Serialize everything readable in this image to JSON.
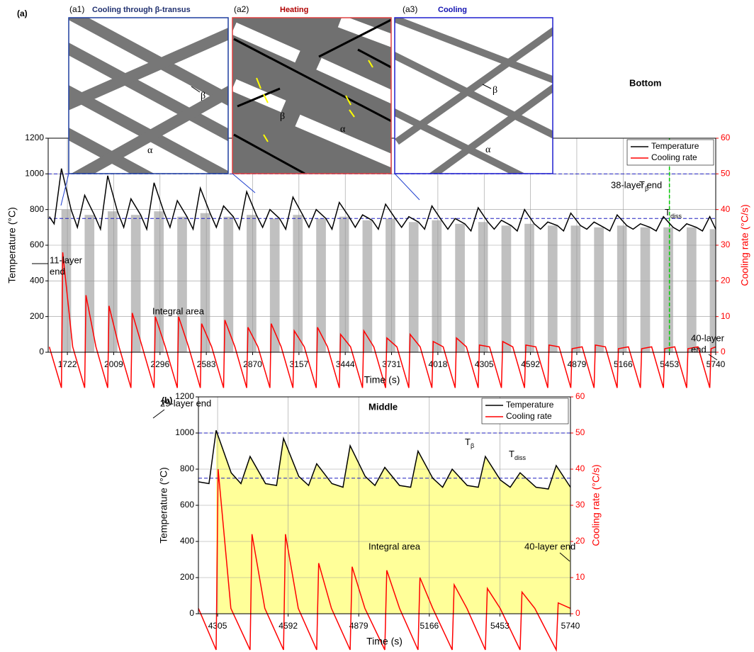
{
  "chart_data": [
    {
      "type": "line",
      "panel": "(a)",
      "position_label": "Bottom",
      "xlabel": "Time (s)",
      "ylabel": "Temperature (°C)",
      "y2label": "Cooling rate (°C/s)",
      "xlim": [
        1603,
        5740
      ],
      "ylim": [
        0,
        1200
      ],
      "y2lim": [
        0,
        60
      ],
      "xticks": [
        1722,
        2009,
        2296,
        2583,
        2870,
        3157,
        3444,
        3731,
        4018,
        4305,
        4592,
        4879,
        5166,
        5453,
        5740
      ],
      "yticks": [
        0,
        200,
        400,
        600,
        800,
        1000,
        1200
      ],
      "y2ticks": [
        0,
        10,
        20,
        30,
        40,
        50,
        60
      ],
      "grid": true,
      "legend": "upper right",
      "shading": "#c0c0c0",
      "series": [
        {
          "name": "Temperature",
          "color": "#000000",
          "axis": "y",
          "x": [
            1610,
            1640,
            1685,
            1745,
            1784,
            1829,
            1889,
            1927,
            1972,
            2032,
            2071,
            2116,
            2176,
            2214,
            2259,
            2319,
            2358,
            2403,
            2463,
            2501,
            2546,
            2606,
            2645,
            2690,
            2750,
            2788,
            2833,
            2893,
            2932,
            2977,
            3037,
            3075,
            3120,
            3180,
            3219,
            3264,
            3324,
            3362,
            3407,
            3467,
            3506,
            3551,
            3611,
            3649,
            3694,
            3754,
            3793,
            3838,
            3898,
            3936,
            3981,
            4041,
            4080,
            4125,
            4185,
            4223,
            4268,
            4328,
            4367,
            4412,
            4472,
            4510,
            4555,
            4615,
            4654,
            4699,
            4759,
            4797,
            4842,
            4902,
            4941,
            4986,
            5046,
            5084,
            5129,
            5189,
            5228,
            5273,
            5333,
            5371,
            5416,
            5476,
            5515,
            5560,
            5620,
            5658,
            5703,
            5740
          ],
          "values": [
            760,
            720,
            1030,
            800,
            700,
            880,
            770,
            690,
            990,
            790,
            700,
            860,
            770,
            690,
            950,
            790,
            700,
            850,
            760,
            690,
            920,
            780,
            700,
            820,
            760,
            690,
            900,
            770,
            700,
            800,
            750,
            690,
            870,
            770,
            700,
            800,
            750,
            690,
            840,
            760,
            700,
            770,
            740,
            690,
            830,
            750,
            700,
            760,
            730,
            690,
            820,
            740,
            690,
            750,
            720,
            680,
            810,
            730,
            690,
            740,
            710,
            680,
            800,
            720,
            690,
            730,
            710,
            680,
            780,
            710,
            690,
            730,
            700,
            680,
            770,
            710,
            690,
            720,
            700,
            680,
            760,
            700,
            680,
            720,
            700,
            680,
            760,
            690
          ]
        },
        {
          "name": "Cooling rate",
          "color": "#ff0000",
          "axis": "y2",
          "x": [
            1610,
            1685,
            1693,
            1755,
            1829,
            1837,
            1899,
            1972,
            1980,
            2042,
            2116,
            2124,
            2186,
            2259,
            2267,
            2329,
            2403,
            2411,
            2473,
            2546,
            2554,
            2616,
            2690,
            2698,
            2760,
            2833,
            2841,
            2903,
            2977,
            2985,
            3047,
            3120,
            3128,
            3190,
            3264,
            3272,
            3334,
            3407,
            3415,
            3477,
            3551,
            3559,
            3621,
            3694,
            3702,
            3764,
            3838,
            3846,
            3908,
            3981,
            3989,
            4051,
            4125,
            4133,
            4195,
            4268,
            4276,
            4338,
            4412,
            4420,
            4482,
            4555,
            4563,
            4625,
            4699,
            4707,
            4769,
            4842,
            4850,
            4912,
            4986,
            4994,
            5056,
            5129,
            5137,
            5199,
            5273,
            5281,
            5343,
            5416,
            5424,
            5486,
            5560,
            5568,
            5630,
            5703,
            5711,
            5740
          ],
          "values": [
            1.5,
            -10,
            28,
            1.5,
            -10,
            16,
            1.5,
            -10,
            13,
            1.5,
            -10,
            11,
            1.5,
            -10,
            10,
            1.5,
            -10,
            10,
            1.5,
            -10,
            8,
            1.5,
            -10,
            9,
            1.5,
            -10,
            7,
            1.5,
            -10,
            8,
            1.5,
            -10,
            6,
            1.5,
            -10,
            7,
            1.5,
            -10,
            5,
            1.5,
            -10,
            6,
            1.5,
            -10,
            4,
            1.5,
            -10,
            5,
            1.5,
            -10,
            3,
            1.5,
            -10,
            4,
            1.5,
            -10,
            2,
            1.5,
            -10,
            3,
            1.5,
            -10,
            2,
            1.5,
            -10,
            2,
            1.5,
            -10,
            1,
            1.5,
            -10,
            2,
            1.5,
            -10,
            1,
            1.5,
            -10,
            1,
            1.5,
            -10,
            1,
            1.5,
            -10,
            1,
            1.5,
            -10,
            1,
            1.5
          ]
        }
      ],
      "ref_lines": [
        {
          "value": 1000,
          "color": "#1f1fbf",
          "label": {
            "main": "T",
            "sub": "β"
          }
        },
        {
          "value": 750,
          "color": "#1f1fbf",
          "label": {
            "main": "T",
            "sub": "diss"
          }
        }
      ],
      "vlines": [
        {
          "value": 5453,
          "color": "#00cc00"
        }
      ],
      "annotations": [
        {
          "lines": [
            "11-layer",
            "end"
          ]
        },
        {
          "lines": [
            "Integral area"
          ]
        },
        {
          "lines": [
            "38-layer end"
          ]
        },
        {
          "lines": [
            "40-layer",
            "end"
          ]
        }
      ]
    },
    {
      "type": "line",
      "panel": "(b)",
      "position_label": "Middle",
      "xlabel": "Time (s)",
      "ylabel": "Temperature (°C)",
      "y2label": "Cooling rate (°C/s)",
      "xlim": [
        4227,
        5740
      ],
      "ylim": [
        0,
        1200
      ],
      "y2lim": [
        0,
        60
      ],
      "xticks": [
        4305,
        4592,
        4879,
        5166,
        5453,
        5740
      ],
      "yticks": [
        0,
        200,
        400,
        600,
        800,
        1000,
        1200
      ],
      "y2ticks": [
        0,
        10,
        20,
        30,
        40,
        50,
        60
      ],
      "grid": true,
      "legend": "upper right",
      "integral_start": 4299,
      "integral_color": "#ffff99",
      "series": [
        {
          "name": "Temperature",
          "color": "#000000",
          "axis": "y",
          "x": [
            4227,
            4270,
            4299,
            4360,
            4400,
            4437,
            4500,
            4545,
            4573,
            4635,
            4675,
            4708,
            4770,
            4815,
            4844,
            4905,
            4945,
            4985,
            5045,
            5090,
            5120,
            5180,
            5220,
            5259,
            5320,
            5365,
            5394,
            5455,
            5495,
            5535,
            5600,
            5650,
            5682,
            5740
          ],
          "values": [
            730,
            720,
            1015,
            780,
            720,
            870,
            720,
            710,
            970,
            760,
            710,
            830,
            720,
            700,
            930,
            760,
            710,
            810,
            710,
            700,
            900,
            750,
            700,
            800,
            710,
            700,
            870,
            740,
            700,
            780,
            700,
            690,
            820,
            700
          ]
        },
        {
          "name": "Cooling rate",
          "color": "#ff0000",
          "axis": "y2",
          "x": [
            4227,
            4299,
            4307,
            4359,
            4437,
            4445,
            4497,
            4573,
            4581,
            4633,
            4708,
            4716,
            4768,
            4844,
            4852,
            4904,
            4985,
            4993,
            5045,
            5120,
            5128,
            5180,
            5259,
            5267,
            5319,
            5394,
            5402,
            5454,
            5535,
            5543,
            5595,
            5682,
            5690,
            5740
          ],
          "values": [
            1.5,
            -10,
            40,
            1.5,
            -10,
            22,
            1.5,
            -10,
            22,
            1.5,
            -10,
            14,
            1.5,
            -10,
            13,
            1.5,
            -10,
            12,
            1.5,
            -10,
            10,
            1.5,
            -10,
            8,
            1.5,
            -10,
            7,
            1.5,
            -10,
            6,
            1.5,
            -10,
            3,
            1.5
          ]
        }
      ],
      "ref_lines": [
        {
          "value": 1000,
          "color": "#1f1fbf",
          "label": {
            "main": "T",
            "sub": "β"
          }
        },
        {
          "value": 750,
          "color": "#1f1fbf",
          "label": {
            "main": "T",
            "sub": "diss"
          }
        }
      ],
      "vlines": [],
      "annotations": [
        {
          "lines": [
            "29-layer end"
          ]
        },
        {
          "lines": [
            "Integral area"
          ]
        },
        {
          "lines": [
            "40-layer end"
          ]
        }
      ]
    }
  ],
  "insets": [
    {
      "label": "(a1)",
      "title": "Cooling through β-transus",
      "phases": [
        "β",
        "α"
      ]
    },
    {
      "label": "(a2)",
      "title": "Heating",
      "phases": [
        "β",
        "α"
      ]
    },
    {
      "label": "(a3)",
      "title": "Cooling",
      "phases": [
        "β",
        "α"
      ]
    }
  ]
}
